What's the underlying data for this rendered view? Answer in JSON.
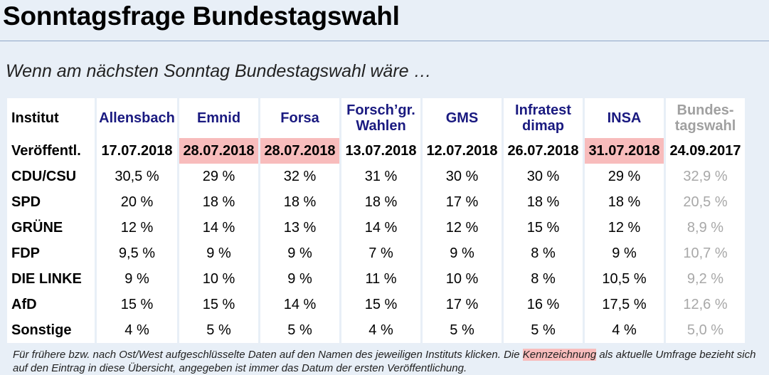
{
  "page_title": "Sonntagsfrage Bundestagswahl",
  "subtitle": "Wenn am nächsten Sonntag Bundestagswahl wäre …",
  "colors": {
    "highlight": "#f8bcbc",
    "institute_link": "#1a1a80",
    "election_gray": "#a8a8a8",
    "background": "#e8eff7"
  },
  "table": {
    "header_label": "Institut",
    "institutes": [
      {
        "line1": "Allensbach",
        "line2": ""
      },
      {
        "line1": "Emnid",
        "line2": ""
      },
      {
        "line1": "Forsa",
        "line2": ""
      },
      {
        "line1": "Forsch’gr.",
        "line2": "Wahlen"
      },
      {
        "line1": "GMS",
        "line2": ""
      },
      {
        "line1": "Infratest",
        "line2": "dimap"
      },
      {
        "line1": "INSA",
        "line2": ""
      }
    ],
    "election_header": {
      "line1": "Bundes-",
      "line2": "tagswahl"
    },
    "date_label": "Veröffentl.",
    "dates": [
      "17.07.2018",
      "28.07.2018",
      "28.07.2018",
      "13.07.2018",
      "12.07.2018",
      "26.07.2018",
      "31.07.2018"
    ],
    "highlighted_dates": [
      false,
      true,
      true,
      false,
      false,
      false,
      true
    ],
    "election_date": "24.09.2017",
    "rows": [
      {
        "party": "CDU/CSU",
        "values": [
          "30,5 %",
          "29 %",
          "32 %",
          "31 %",
          "30 %",
          "30 %",
          "29 %"
        ],
        "election": "32,9 %"
      },
      {
        "party": "SPD",
        "values": [
          "20 %",
          "18 %",
          "18 %",
          "18 %",
          "17 %",
          "18 %",
          "18 %"
        ],
        "election": "20,5 %"
      },
      {
        "party": "GRÜNE",
        "values": [
          "12 %",
          "14 %",
          "13 %",
          "14 %",
          "12 %",
          "15 %",
          "12 %"
        ],
        "election": "8,9 %"
      },
      {
        "party": "FDP",
        "values": [
          "9,5 %",
          "9 %",
          "9 %",
          "7 %",
          "9 %",
          "8 %",
          "9 %"
        ],
        "election": "10,7 %"
      },
      {
        "party": "DIE LINKE",
        "values": [
          "9 %",
          "10 %",
          "9 %",
          "11 %",
          "10 %",
          "8 %",
          "10,5 %"
        ],
        "election": "9,2 %"
      },
      {
        "party": "AfD",
        "values": [
          "15 %",
          "15 %",
          "14 %",
          "15 %",
          "17 %",
          "16 %",
          "17,5 %"
        ],
        "election": "12,6 %"
      },
      {
        "party": "Sonstige",
        "values": [
          "4 %",
          "5 %",
          "5 %",
          "4 %",
          "5 %",
          "5 %",
          "4 %"
        ],
        "election": "5,0 %"
      }
    ]
  },
  "footnote": {
    "part1": "Für frühere bzw. nach Ost/West aufgeschlüsselte Daten auf den Namen des jeweiligen Instituts klicken. Die ",
    "highlight_word": "Kennzeichnung",
    "part2": " als aktuelle Umfrage bezieht sich auf den Eintrag in diese Übersicht, angegeben ist immer das Datum der ersten Veröffentlichung."
  }
}
